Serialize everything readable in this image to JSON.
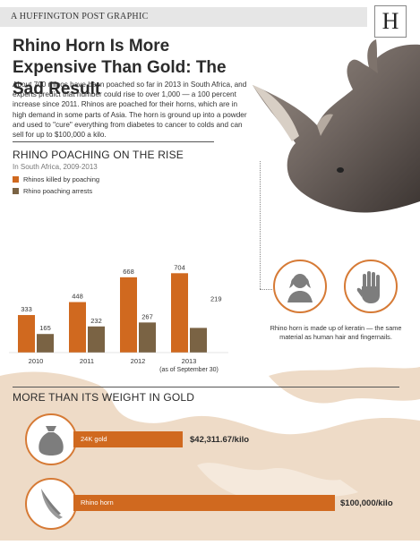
{
  "header": {
    "graphic_label": "A HUFFINGTON POST GRAPHIC",
    "logo_letter": "H"
  },
  "title": "Rhino Horn Is More Expensive Than Gold: The Sad Result",
  "intro": "About 700 rhinos have been poached so far in 2013 in South Africa, and experts predict that number could rise to over 1,000 — a 100 percent increase since 2011. Rhinos are poached for their horns, which are in high demand in some parts of Asia. The horn is ground up into a powder and used to \"cure\" everything from diabetes to cancer to colds and can sell for up to $100,000 a kilo.",
  "keratin_note": "Rhino horn is made up of keratin — the same material as human hair and fingernails.",
  "icons": [
    "person-icon",
    "hand-icon",
    "gold-sack-icon",
    "rhino-horn-icon"
  ],
  "colors": {
    "orange": "#d0691f",
    "brown": "#7a6344",
    "peach": "#eedbc7"
  },
  "chart_data": [
    {
      "type": "bar",
      "title": "RHINO POACHING ON THE RISE",
      "subtitle": "In South Africa, 2009-2013",
      "categories": [
        "2010",
        "2011",
        "2012",
        "2013"
      ],
      "category_note": "(as of September 30)",
      "series": [
        {
          "name": "Rhinos killed by poaching",
          "values": [
            333,
            448,
            668,
            704
          ],
          "color": "#d0691f"
        },
        {
          "name": "Rhino poaching arrests",
          "values": [
            165,
            232,
            267,
            219
          ],
          "color": "#7a6344"
        }
      ],
      "legend_position": "top-left",
      "grid": false
    },
    {
      "type": "bar",
      "orientation": "horizontal",
      "title": "MORE THAN ITS WEIGHT IN GOLD",
      "categories": [
        "24K gold",
        "Rhino horn"
      ],
      "values": [
        42311.67,
        100000
      ],
      "value_labels": [
        "$42,311.67/kilo",
        "$100,000/kilo"
      ],
      "unit": "/kilo"
    }
  ]
}
